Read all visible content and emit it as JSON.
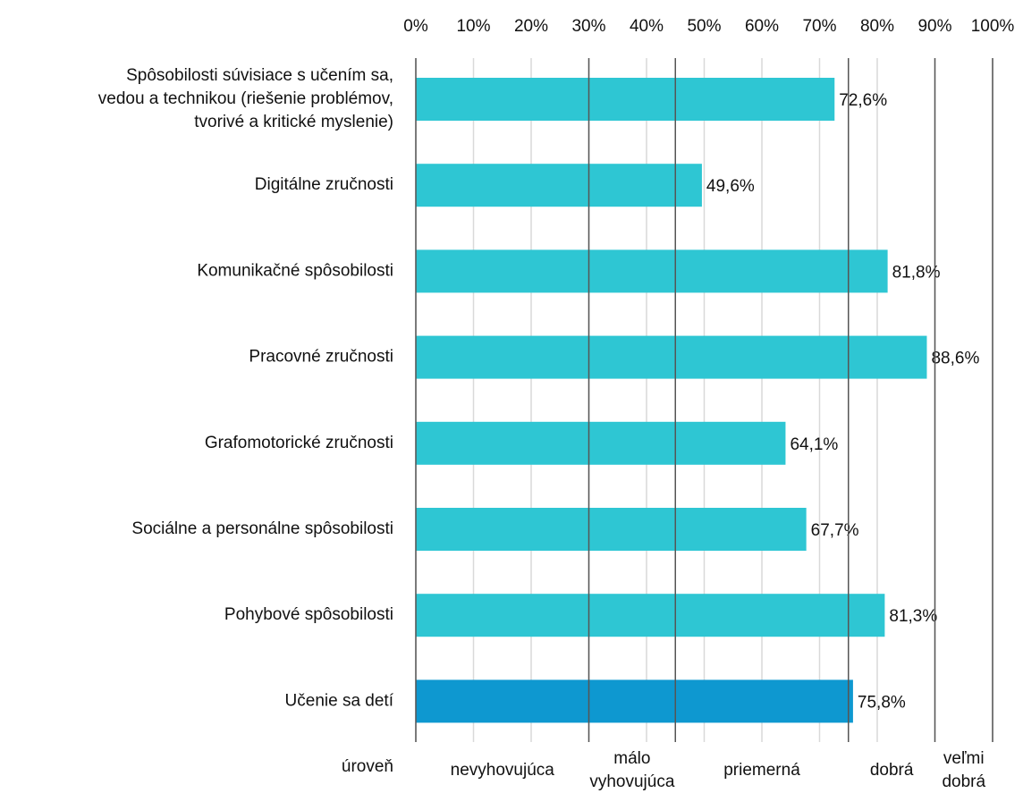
{
  "chart_data": {
    "type": "bar",
    "orientation": "horizontal",
    "categories": [
      [
        "Spôsobilosti súvisiace s učením sa,",
        "vedou a technikou (riešenie problémov,",
        "tvorivé a kritické myslenie)"
      ],
      "Digitálne zručnosti",
      "Komunikačné spôsobilosti",
      "Pracovné zručnosti",
      "Grafomotorické zručnosti",
      "Sociálne a personálne spôsobilosti",
      "Pohybové spôsobilosti",
      "Učenie sa detí"
    ],
    "values": [
      72.6,
      49.6,
      81.8,
      88.6,
      64.1,
      67.7,
      81.3,
      75.8
    ],
    "value_labels": [
      "72,6%",
      "49,6%",
      "81,8%",
      "88,6%",
      "64,1%",
      "67,7%",
      "81,3%",
      "75,8%"
    ],
    "colors": [
      "#2ec6d3",
      "#2ec6d3",
      "#2ec6d3",
      "#2ec6d3",
      "#2ec6d3",
      "#2ec6d3",
      "#2ec6d3",
      "#0e98d0"
    ],
    "xlim": [
      0,
      100
    ],
    "xticks": [
      {
        "value": 0,
        "label": "0%"
      },
      {
        "value": 10,
        "label": "10%"
      },
      {
        "value": 20,
        "label": "20%"
      },
      {
        "value": 30,
        "label": "30%"
      },
      {
        "value": 40,
        "label": "40%"
      },
      {
        "value": 50,
        "label": "50%"
      },
      {
        "value": 60,
        "label": "60%"
      },
      {
        "value": 70,
        "label": "70%"
      },
      {
        "value": 80,
        "label": "80%"
      },
      {
        "value": 90,
        "label": "90%"
      },
      {
        "value": 100,
        "label": "100%"
      }
    ],
    "grid": true,
    "level_title": "úroveň",
    "level_bounds": [
      0,
      30,
      45,
      75,
      90,
      100
    ],
    "levels": [
      [
        "nevyhovujúca"
      ],
      [
        "málo",
        "vyhovujúca"
      ],
      [
        "priemerná"
      ],
      [
        "dobrá"
      ],
      [
        "veľmi",
        "dobrá"
      ]
    ]
  }
}
